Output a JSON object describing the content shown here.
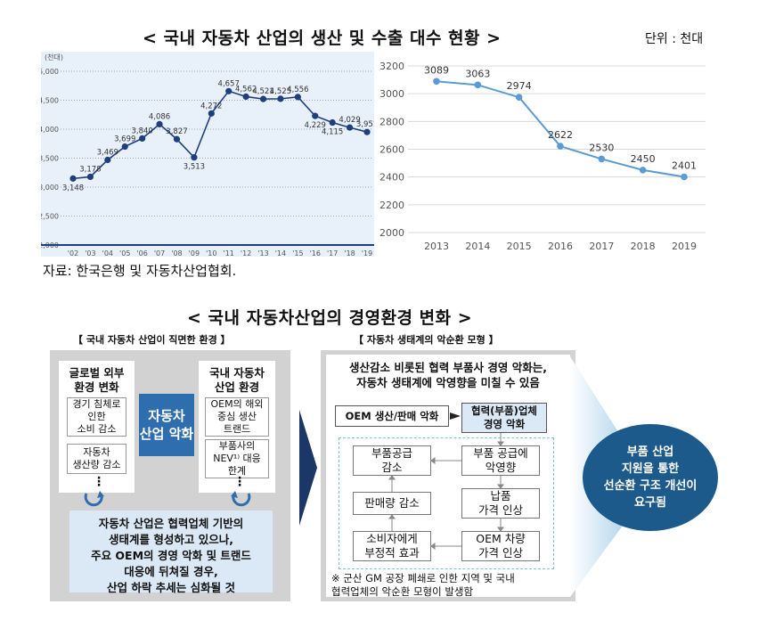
{
  "section1": {
    "title": "< 국내 자동차 산업의 생산 및 수출 대수 현황 >",
    "unit": "단위 : 천대",
    "source": "자료: 한국은행 및 자동차산업협회."
  },
  "chart_data": [
    {
      "type": "line",
      "title": "",
      "ylabel": "(천대)",
      "categories": [
        "'02",
        "'03",
        "'04",
        "'05",
        "'06",
        "'07",
        "'08",
        "'09",
        "'10",
        "'11",
        "'12",
        "'13",
        "'14",
        "'15",
        "'16",
        "'17",
        "'18",
        "'19"
      ],
      "values": [
        3148,
        3178,
        3469,
        3699,
        3840,
        4086,
        3827,
        3513,
        4272,
        4657,
        4562,
        4521,
        4525,
        4556,
        4229,
        4115,
        4029,
        3951
      ],
      "value_labels": [
        "3,148",
        "3,178",
        "3,469",
        "3,699",
        "3,840",
        "4,086",
        "3,827",
        "3,513",
        "4,272",
        "4,657",
        "4,562",
        "4,521",
        "4,525",
        "4,556",
        "4,229",
        "4,115",
        "4,029",
        "3,951"
      ],
      "yticks": [
        "2,000",
        "2,500",
        "3,000",
        "3,500",
        "4,000",
        "4,500",
        "5,000"
      ],
      "ylim": [
        2000,
        5000
      ],
      "color": "#1f3e7c"
    },
    {
      "type": "line",
      "title": "",
      "categories": [
        "2013",
        "2014",
        "2015",
        "2016",
        "2017",
        "2018",
        "2019"
      ],
      "values": [
        3089,
        3063,
        2974,
        2622,
        2530,
        2450,
        2401
      ],
      "yticks": [
        "2000",
        "2200",
        "2400",
        "2600",
        "2800",
        "3000",
        "3200"
      ],
      "ylim": [
        2000,
        3200
      ],
      "color": "#5b9bd5"
    }
  ],
  "section2": {
    "title": "< 국내 자동차산업의 경영환경 변화 >",
    "left_caption": "【 국내 자동차 산업이 직면한 환경 】",
    "right_caption": "【 자동차 생태계의 악순환 모형 】",
    "global_header": [
      "글로벌 외부",
      "환경 변화"
    ],
    "global_items": [
      [
        "경기 침체로",
        "인한",
        "소비 감소"
      ],
      [
        "자동차",
        "생산량 감소"
      ]
    ],
    "domestic_header": [
      "국내 자동차",
      "산업 환경"
    ],
    "domestic_items": [
      [
        "OEM의 해외",
        "중심 생산",
        "트랜드"
      ],
      [
        "부품사의",
        "NEV¹⁾ 대응",
        "한계"
      ]
    ],
    "center_label": [
      "자동차",
      "산업 악화"
    ],
    "dots": "⋮",
    "bottom_text": [
      "자동차 산업은 협력업체 기반의",
      "생태계를 형성하고 있으나,",
      "주요 OEM의 경영 악화 및 트랜드",
      "대응에 뒤쳐질 경우,",
      "산업 하락 추세는 심화될 것"
    ],
    "cycle_header": [
      "생산감소 비롯된 협력 부품사 경영 악화는,",
      "자동차 생태계에 악영향을 미칠 수 있음"
    ],
    "oem_box": "OEM 생산/판매 악화",
    "supplier_box": [
      "협력(부품)업체",
      "경영 악화"
    ],
    "cycle_boxes": {
      "parts_supply_decrease": [
        "부품공급",
        "감소"
      ],
      "parts_supply_bad": [
        "부품 공급에",
        "악영향"
      ],
      "sales_decrease": "판매량 감소",
      "delivery_price": [
        "납품",
        "가격 인상"
      ],
      "consumer_negative": [
        "소비자에게",
        "부정적 효과"
      ],
      "oem_price": [
        "OEM 차량",
        "가격 인상"
      ]
    },
    "note": [
      "※ 군산 GM 공장 폐쇄로 인한 지역 및 국내",
      "협력업체의 악순환 모형이 발생함"
    ],
    "result": [
      "부품 산업",
      "지원을 통한",
      "선순환 구조 개선이",
      "요구됨"
    ],
    "colors": {
      "accent": "#2f6eae",
      "result_circle": "#1d5a8c",
      "bottom_box": "#dbe9f6"
    }
  }
}
